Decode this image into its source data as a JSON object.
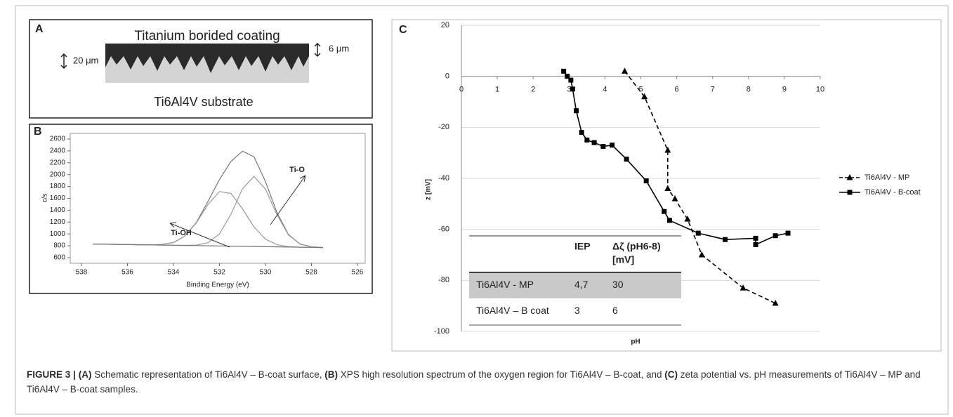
{
  "panel_labels": [
    "A",
    "B",
    "C"
  ],
  "schematic": {
    "coating": "Titanium borided coating",
    "substrate": "Ti6Al4V substrate",
    "substrate_thickness": "20 μm",
    "coating_thickness": "6 μm"
  },
  "chart_data": [
    {
      "type": "line",
      "xlabel": "Binding Energy (eV)",
      "ylabel": "c/s",
      "x": [
        537.5,
        537,
        536.5,
        536,
        535.5,
        535,
        534.5,
        534,
        533.5,
        533,
        532.5,
        532,
        531.5,
        531,
        530.5,
        530,
        529.5,
        529,
        528.5,
        528,
        527.5
      ],
      "series": [
        {
          "color": "#777777",
          "values": [
            830,
            827,
            824,
            821,
            818,
            815,
            822,
            856,
            965,
            1198,
            1547,
            1917,
            2223,
            2395,
            2300,
            1883,
            1358,
            989,
            829,
            783,
            772
          ]
        },
        {
          "color": "#999999",
          "values": [
            830,
            827,
            824,
            821,
            818,
            815,
            822,
            856,
            964,
            1189,
            1495,
            1714,
            1683,
            1424,
            1120,
            912,
            818,
            786,
            777,
            774,
            771
          ]
        },
        {
          "color": "#999999",
          "values": [
            830,
            827,
            824,
            821,
            818,
            815,
            812,
            809,
            807,
            812,
            852,
            1000,
            1334,
            1762,
            1968,
            1756,
            1322,
            982,
            828,
            783,
            772
          ]
        },
        {
          "color": "#777777",
          "values": [
            830,
            827,
            824,
            821,
            818,
            815,
            812,
            809,
            806,
            803,
            800,
            797,
            794,
            791,
            788,
            785,
            782,
            779,
            776,
            774,
            771
          ]
        }
      ],
      "annotations": [
        "Ti-OH",
        "Ti-O"
      ],
      "xlim": [
        538,
        526
      ],
      "xticks": [
        538,
        536,
        534,
        532,
        530,
        528,
        526
      ],
      "ylim": [
        600,
        2600
      ],
      "yticks": [
        600,
        800,
        1000,
        1200,
        1400,
        1600,
        1800,
        2000,
        2200,
        2400,
        2600
      ]
    },
    {
      "type": "line",
      "xlabel": "pH",
      "ylabel": "z [mV]",
      "grid": true,
      "legend": "right",
      "series": [
        {
          "name": "Ti6Al4V - MP",
          "color": "#000000",
          "dashed": true,
          "marker": "triangle",
          "x": [
            4.55,
            5.1,
            5.75,
            5.75,
            5.95,
            6.3,
            6.7,
            7.85,
            8.75
          ],
          "values": [
            2,
            -8,
            -29,
            -44,
            -48,
            -56,
            -70,
            -83,
            -89
          ]
        },
        {
          "name": "Ti6Al4V - B-coat",
          "color": "#000000",
          "dashed": false,
          "marker": "square",
          "x": [
            2.85,
            2.95,
            3.05,
            3.1,
            3.2,
            3.35,
            3.5,
            3.7,
            3.95,
            4.2,
            4.6,
            5.15,
            5.65,
            5.8,
            6.6,
            7.35,
            8.2,
            8.2,
            8.75,
            9.1
          ],
          "values": [
            2,
            0,
            -1.5,
            -5,
            -13.5,
            -22,
            -25,
            -26,
            -27.5,
            -27,
            -32.5,
            -41,
            -53,
            -56.5,
            -61.5,
            -64,
            -63.5,
            -66,
            -62.5,
            -61.5
          ]
        }
      ],
      "xlim": [
        0,
        10
      ],
      "xticks": [
        0,
        1,
        2,
        3,
        4,
        5,
        6,
        7,
        8,
        9,
        10
      ],
      "ylim": [
        -100,
        20
      ],
      "yticks": [
        -100,
        -80,
        -60,
        -40,
        -20,
        0,
        20
      ],
      "table": {
        "columns": [
          {
            "lines": [
              "IEP"
            ]
          },
          {
            "lines": [
              "Δζ (pH6-8)",
              "[mV]"
            ]
          }
        ],
        "rows": [
          {
            "label": "Ti6Al4V - MP",
            "cells": [
              "4,7",
              30
            ],
            "shaded": true
          },
          {
            "label": "Ti6Al4V – B coat",
            "cells": [
              3,
              6
            ],
            "shaded": false
          }
        ]
      }
    }
  ],
  "caption": {
    "label": "FIGURE 3 |",
    "parts": [
      {
        "bold": "(A)",
        "text": " Schematic representation of Ti6Al4V – B-coat surface, "
      },
      {
        "bold": "(B)",
        "text": " XPS high resolution spectrum of the oxygen region for Ti6Al4V – B-coat, and "
      },
      {
        "bold": "(C)",
        "text": " zeta potential vs. pH measurements of Ti6Al4V – MP and Ti6Al4V – B-coat samples."
      }
    ]
  }
}
